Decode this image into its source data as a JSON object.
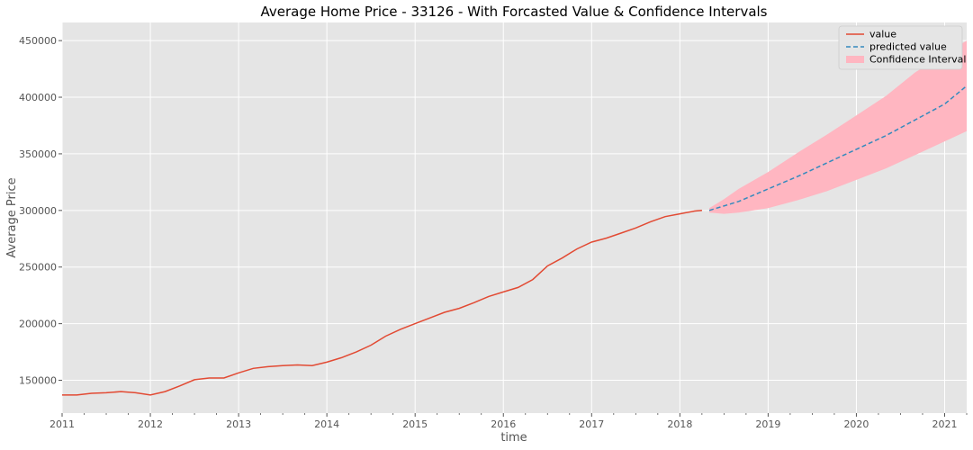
{
  "chart_data": {
    "type": "line",
    "title": "Average Home Price - 33126 - With Forcasted Value & Confidence Intervals",
    "xlabel": "time",
    "ylabel": "Average Price",
    "xlim": [
      "2011-01",
      "2021-04"
    ],
    "ylim": [
      121000,
      466000
    ],
    "x_ticks": [
      "2011",
      "2012",
      "2013",
      "2014",
      "2015",
      "2016",
      "2017",
      "2018",
      "2019",
      "2020",
      "2021"
    ],
    "y_ticks": [
      150000,
      200000,
      250000,
      300000,
      350000,
      400000,
      450000
    ],
    "y_tick_labels": [
      "150000",
      "200000",
      "250000",
      "300000",
      "350000",
      "400000",
      "450000"
    ],
    "grid": true,
    "legend_position": "top-right",
    "colors": {
      "value": "#E24A33",
      "predicted": "#348ABD",
      "confidence": "#FFB6C1",
      "plot_background": "#E5E5E5",
      "grid": "#FFFFFF"
    },
    "series": [
      {
        "name": "value",
        "style": "solid",
        "points": [
          [
            "2011-01",
            137000
          ],
          [
            "2011-03",
            137000
          ],
          [
            "2011-05",
            138500
          ],
          [
            "2011-07",
            139000
          ],
          [
            "2011-09",
            140000
          ],
          [
            "2011-11",
            139000
          ],
          [
            "2012-01",
            137000
          ],
          [
            "2012-03",
            140000
          ],
          [
            "2012-05",
            145000
          ],
          [
            "2012-07",
            150500
          ],
          [
            "2012-09",
            152000
          ],
          [
            "2012-11",
            152000
          ],
          [
            "2013-01",
            156500
          ],
          [
            "2013-03",
            160500
          ],
          [
            "2013-05",
            162000
          ],
          [
            "2013-07",
            163000
          ],
          [
            "2013-09",
            163500
          ],
          [
            "2013-11",
            163000
          ],
          [
            "2014-01",
            166000
          ],
          [
            "2014-03",
            170000
          ],
          [
            "2014-05",
            175000
          ],
          [
            "2014-07",
            181000
          ],
          [
            "2014-09",
            189000
          ],
          [
            "2014-11",
            195000
          ],
          [
            "2015-01",
            200000
          ],
          [
            "2015-03",
            205000
          ],
          [
            "2015-05",
            210000
          ],
          [
            "2015-07",
            213500
          ],
          [
            "2015-09",
            218500
          ],
          [
            "2015-11",
            224000
          ],
          [
            "2016-01",
            228000
          ],
          [
            "2016-03",
            232000
          ],
          [
            "2016-05",
            239000
          ],
          [
            "2016-07",
            251000
          ],
          [
            "2016-09",
            258000
          ],
          [
            "2016-11",
            266000
          ],
          [
            "2017-01",
            272000
          ],
          [
            "2017-03",
            275500
          ],
          [
            "2017-05",
            280000
          ],
          [
            "2017-07",
            284500
          ],
          [
            "2017-09",
            290000
          ],
          [
            "2017-11",
            294500
          ],
          [
            "2018-01",
            297000
          ],
          [
            "2018-03",
            299500
          ],
          [
            "2018-04",
            300000
          ]
        ]
      },
      {
        "name": "predicted value",
        "style": "dashed",
        "points": [
          [
            "2018-05",
            300000
          ],
          [
            "2018-09",
            308000
          ],
          [
            "2019-01",
            319000
          ],
          [
            "2019-05",
            330000
          ],
          [
            "2019-09",
            342000
          ],
          [
            "2020-01",
            354000
          ],
          [
            "2020-05",
            366000
          ],
          [
            "2020-09",
            380000
          ],
          [
            "2021-01",
            394000
          ],
          [
            "2021-04",
            410000
          ]
        ]
      }
    ],
    "confidence_interval": {
      "name": "Confidence Interval",
      "points": [
        [
          "2018-05",
          298000,
          302000
        ],
        [
          "2018-07",
          297000,
          310000
        ],
        [
          "2018-09",
          298000,
          319000
        ],
        [
          "2019-01",
          302000,
          334000
        ],
        [
          "2019-05",
          309000,
          351000
        ],
        [
          "2019-09",
          317000,
          367000
        ],
        [
          "2020-01",
          327000,
          384000
        ],
        [
          "2020-05",
          337000,
          401000
        ],
        [
          "2020-09",
          349000,
          422000
        ],
        [
          "2021-01",
          361000,
          438000
        ],
        [
          "2021-04",
          370000,
          450000
        ]
      ]
    }
  }
}
